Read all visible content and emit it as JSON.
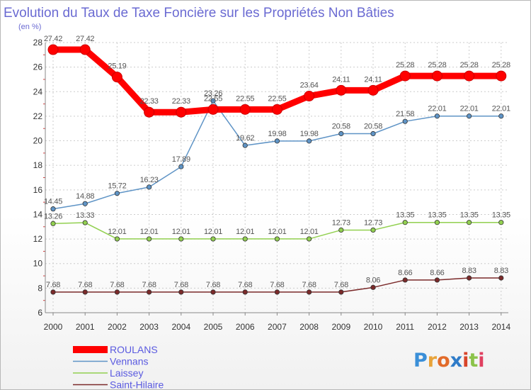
{
  "chart_data": {
    "type": "line",
    "title": "Evolution du Taux de Taxe Foncière sur les Propriétés Non Bâties",
    "ylabel": "(en %)",
    "xlabel": "",
    "ylim": [
      6,
      28
    ],
    "yticks": [
      6,
      8,
      10,
      12,
      14,
      16,
      18,
      20,
      22,
      24,
      26,
      28
    ],
    "grid": true,
    "legend_position": "bottom-left",
    "categories": [
      "2000",
      "2001",
      "2002",
      "2003",
      "2004",
      "2005",
      "2006",
      "2007",
      "2008",
      "2009",
      "2010",
      "2011",
      "2012",
      "2013",
      "2014"
    ],
    "series": [
      {
        "name": "ROULANS",
        "color": "#ff0000",
        "values": [
          27.42,
          27.42,
          25.19,
          22.33,
          22.33,
          22.55,
          22.55,
          22.55,
          23.64,
          24.11,
          24.11,
          25.28,
          25.28,
          25.28,
          25.28
        ],
        "labels": [
          "27.42",
          "27.42",
          "25.19",
          "22.33",
          "22.33",
          "22.55",
          "22.55",
          "22.55",
          "23.64",
          "24.11",
          "24.11",
          "25.28",
          "25.28",
          "25.28",
          "25.28"
        ]
      },
      {
        "name": "Vennans",
        "color": "#5f94c6",
        "values": [
          14.45,
          14.88,
          15.72,
          16.23,
          17.89,
          23.26,
          19.62,
          19.98,
          19.98,
          20.58,
          20.58,
          21.58,
          22.01,
          22.01,
          22.01
        ],
        "labels": [
          "14.45",
          "14.88",
          "15.72",
          "16.23",
          "17.89",
          "23.26",
          "19.62",
          "19.98",
          "19.98",
          "20.58",
          "20.58",
          "21.58",
          "22.01",
          "22.01",
          "22.01"
        ]
      },
      {
        "name": "Laissey",
        "color": "#92d050",
        "values": [
          13.26,
          13.33,
          12.01,
          12.01,
          12.01,
          12.01,
          12.01,
          12.01,
          12.01,
          12.73,
          12.73,
          13.35,
          13.35,
          13.35,
          13.35
        ],
        "labels": [
          "13.26",
          "13.33",
          "12.01",
          "12.01",
          "12.01",
          "12.01",
          "12.01",
          "12.01",
          "12.01",
          "12.73",
          "12.73",
          "13.35",
          "13.35",
          "13.35",
          "13.35"
        ]
      },
      {
        "name": "Saint-Hilaire",
        "color": "#7b2a2a",
        "values": [
          7.68,
          7.68,
          7.68,
          7.68,
          7.68,
          7.68,
          7.68,
          7.68,
          7.68,
          7.68,
          8.06,
          8.66,
          8.66,
          8.83,
          8.83
        ],
        "labels": [
          "7.68",
          "7.68",
          "7.68",
          "7.68",
          "7.68",
          "7.68",
          "7.68",
          "7.68",
          "7.68",
          "7.68",
          "8.06",
          "8.66",
          "8.66",
          "8.83",
          "8.83"
        ]
      }
    ]
  },
  "logo": {
    "text": "Proxiti"
  }
}
